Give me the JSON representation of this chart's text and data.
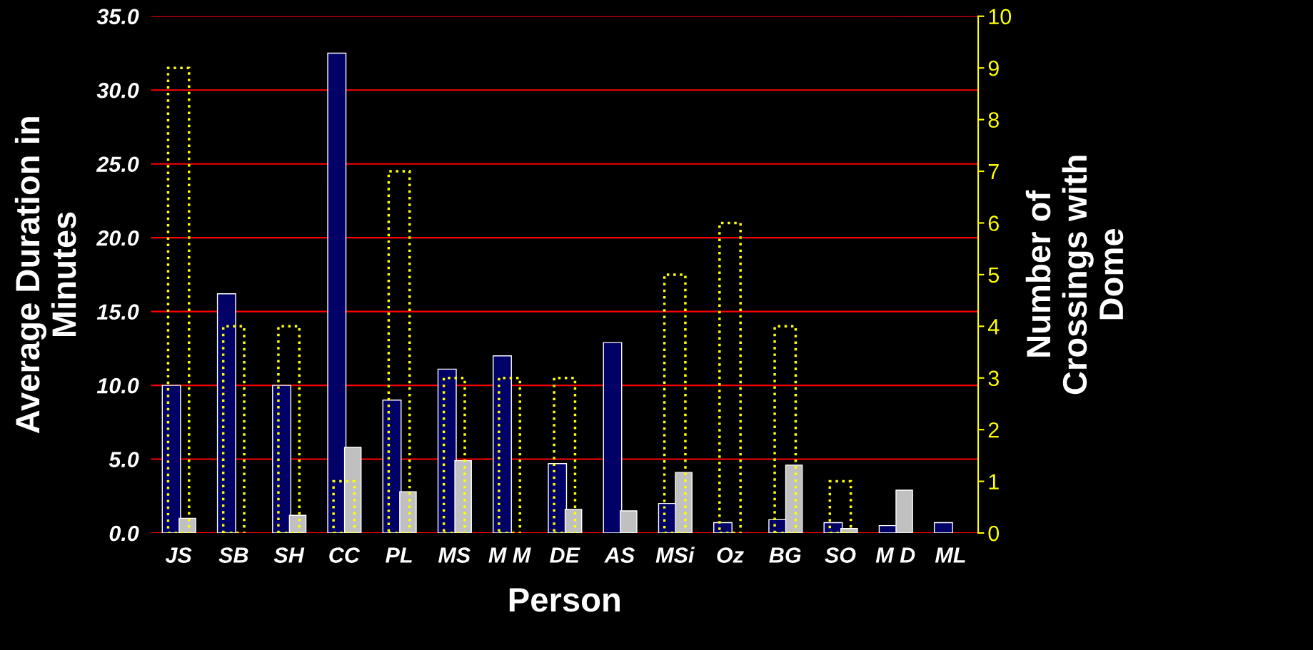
{
  "chart_data": {
    "type": "bar",
    "xlabel": "Person",
    "ylabel": "Average Duration in\nMinutes",
    "y2label": "Number of\nCrossings with\nDome",
    "categories": [
      "JS",
      "SB",
      "SH",
      "CC",
      "PL",
      "MS",
      "M M",
      "DE",
      "AS",
      "MSi",
      "Oz",
      "BG",
      "SO",
      "M D",
      "ML"
    ],
    "series": [
      {
        "color": "#000066",
        "values": [
          10.0,
          16.2,
          10.0,
          32.5,
          9.0,
          11.1,
          12.0,
          4.7,
          12.9,
          2.0,
          0.7,
          0.9,
          0.7,
          0.5,
          0.7
        ]
      },
      {
        "color": "#ffff00",
        "axis": "y2",
        "line_style": "dotted",
        "values": [
          9,
          4,
          4,
          1,
          7,
          3,
          3,
          3,
          null,
          5,
          6,
          4,
          1,
          null,
          null
        ]
      },
      {
        "color": "#c0c0c0",
        "values": [
          1.0,
          null,
          1.2,
          5.8,
          2.8,
          4.9,
          null,
          1.6,
          1.5,
          4.1,
          null,
          4.6,
          0.3,
          2.9,
          null
        ]
      }
    ],
    "ylim": [
      0,
      35
    ],
    "yticks": [
      {
        "value": 0,
        "label": "0.0"
      },
      {
        "value": 5,
        "label": "5.0"
      },
      {
        "value": 10,
        "label": "10.0"
      },
      {
        "value": 15,
        "label": "15.0"
      },
      {
        "value": 20,
        "label": "20.0"
      },
      {
        "value": 25,
        "label": "25.0"
      },
      {
        "value": 30,
        "label": "30.0"
      },
      {
        "value": 35,
        "label": "35.0"
      }
    ],
    "y2lim": [
      0,
      10
    ],
    "y2ticks": [
      0,
      1,
      2,
      3,
      4,
      5,
      6,
      7,
      8,
      9,
      10
    ],
    "grid": "y",
    "legend": false
  }
}
